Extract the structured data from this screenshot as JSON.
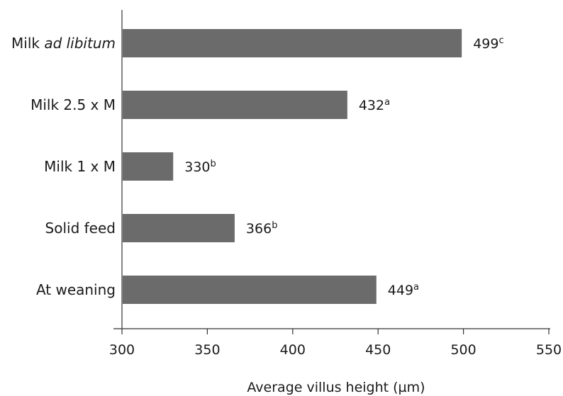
{
  "chart_data": {
    "type": "bar",
    "orientation": "horizontal",
    "categories": [
      {
        "text": "Milk ",
        "italic": "ad libitum"
      },
      {
        "text": "Milk 2.5 x M"
      },
      {
        "text": "Milk 1 x M"
      },
      {
        "text": "Solid feed"
      },
      {
        "text": "At weaning"
      }
    ],
    "values": [
      499,
      432,
      330,
      366,
      449
    ],
    "value_labels": [
      "499",
      "432",
      "330",
      "366",
      "449"
    ],
    "superscripts": [
      "c",
      "a",
      "b",
      "b",
      "a"
    ],
    "xlabel": "Average villus height (µm)",
    "ylabel": "",
    "xlim": [
      300,
      550
    ],
    "xticks": [
      "300",
      "350",
      "400",
      "450",
      "500",
      "550"
    ],
    "grid": false,
    "legend": "none",
    "bar_color": "#6b6b6b"
  }
}
